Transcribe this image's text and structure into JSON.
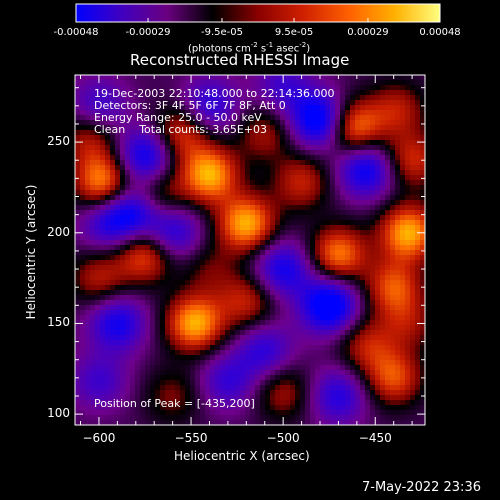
{
  "colorbar": {
    "ticks": [
      "-0.00048",
      "-0.00029",
      "-9.5e-05",
      "9.5e-05",
      "0.00029",
      "0.00048"
    ],
    "tick_values": [
      -0.00048,
      -0.00029,
      -9.5e-05,
      9.5e-05,
      0.00029,
      0.00048
    ],
    "range": [
      -0.00048,
      0.00048
    ],
    "units_prefix": "(photons cm",
    "units_exp1": "-2",
    "units_mid1": " s",
    "units_exp2": "-1",
    "units_mid2": " asec",
    "units_exp3": "-2",
    "units_suffix": ")",
    "colors": [
      "#0000ff",
      "#4000c0",
      "#6a0080",
      "#000000",
      "#8a0000",
      "#d02000",
      "#ff6000",
      "#ffb000",
      "#ffff80"
    ]
  },
  "chart_data": {
    "type": "heatmap",
    "title": "Reconstructed RHESSI Image",
    "xlabel": "Heliocentric X (arcsec)",
    "ylabel": "Heliocentric Y (arcsec)",
    "xlim": [
      -613,
      -423
    ],
    "ylim": [
      94,
      287
    ],
    "xticks": [
      -600,
      -550,
      -500,
      -450
    ],
    "xtick_labels": [
      "−600",
      "−550",
      "−500",
      "−450"
    ],
    "yticks": [
      100,
      150,
      200,
      250
    ],
    "ytick_labels": [
      "100",
      "150",
      "200",
      "250"
    ],
    "annotations": [
      "19-Dec-2003 22:10:48.000 to 22:14:36.000",
      "Detectors: 3F 4F 5F 6F 7F 8F, Att 0",
      "Energy Range: 25.0 - 50.0 keV",
      "Clean    Total counts: 3.65E+03"
    ],
    "peak_label": "Position of Peak = [-435,200]",
    "peak": [
      -435,
      200
    ],
    "blobs": [
      {
        "x": -598,
        "y": 228,
        "v": 0.9
      },
      {
        "x": -568,
        "y": 220,
        "v": 0.55
      },
      {
        "x": -575,
        "y": 242,
        "v": -0.8
      },
      {
        "x": -580,
        "y": 212,
        "v": -0.75
      },
      {
        "x": -555,
        "y": 255,
        "v": 0.65
      },
      {
        "x": -540,
        "y": 270,
        "v": -0.6
      },
      {
        "x": -540,
        "y": 232,
        "v": 1.0
      },
      {
        "x": -520,
        "y": 205,
        "v": 1.0
      },
      {
        "x": -510,
        "y": 255,
        "v": 0.45
      },
      {
        "x": -480,
        "y": 262,
        "v": -1.0
      },
      {
        "x": -462,
        "y": 258,
        "v": 0.9
      },
      {
        "x": -490,
        "y": 228,
        "v": 0.55
      },
      {
        "x": -455,
        "y": 235,
        "v": -0.8
      },
      {
        "x": -438,
        "y": 268,
        "v": 0.5
      },
      {
        "x": -432,
        "y": 200,
        "v": 1.0
      },
      {
        "x": -470,
        "y": 188,
        "v": 0.85
      },
      {
        "x": -500,
        "y": 180,
        "v": -0.7
      },
      {
        "x": -475,
        "y": 160,
        "v": -1.0
      },
      {
        "x": -548,
        "y": 150,
        "v": 1.0
      },
      {
        "x": -575,
        "y": 188,
        "v": 0.75
      },
      {
        "x": -600,
        "y": 175,
        "v": 0.5
      },
      {
        "x": -590,
        "y": 150,
        "v": -0.7
      },
      {
        "x": -520,
        "y": 162,
        "v": 0.55
      },
      {
        "x": -510,
        "y": 135,
        "v": -0.55
      },
      {
        "x": -440,
        "y": 170,
        "v": 0.7
      },
      {
        "x": -432,
        "y": 150,
        "v": 0.4
      },
      {
        "x": -440,
        "y": 120,
        "v": 0.7
      },
      {
        "x": -455,
        "y": 138,
        "v": 0.5
      },
      {
        "x": -470,
        "y": 110,
        "v": -0.6
      },
      {
        "x": -500,
        "y": 112,
        "v": 0.45
      },
      {
        "x": -530,
        "y": 118,
        "v": -0.5
      },
      {
        "x": -560,
        "y": 110,
        "v": 0.35
      },
      {
        "x": -600,
        "y": 118,
        "v": -0.45
      },
      {
        "x": -600,
        "y": 270,
        "v": -0.5
      },
      {
        "x": -605,
        "y": 252,
        "v": 0.5
      },
      {
        "x": -430,
        "y": 240,
        "v": 0.6
      },
      {
        "x": -560,
        "y": 200,
        "v": -0.65
      },
      {
        "x": -500,
        "y": 280,
        "v": -0.45
      },
      {
        "x": -595,
        "y": 205,
        "v": -0.55
      },
      {
        "x": -540,
        "y": 180,
        "v": 0.3
      }
    ]
  },
  "footer": {
    "date": "7-May-2022 23:36"
  }
}
